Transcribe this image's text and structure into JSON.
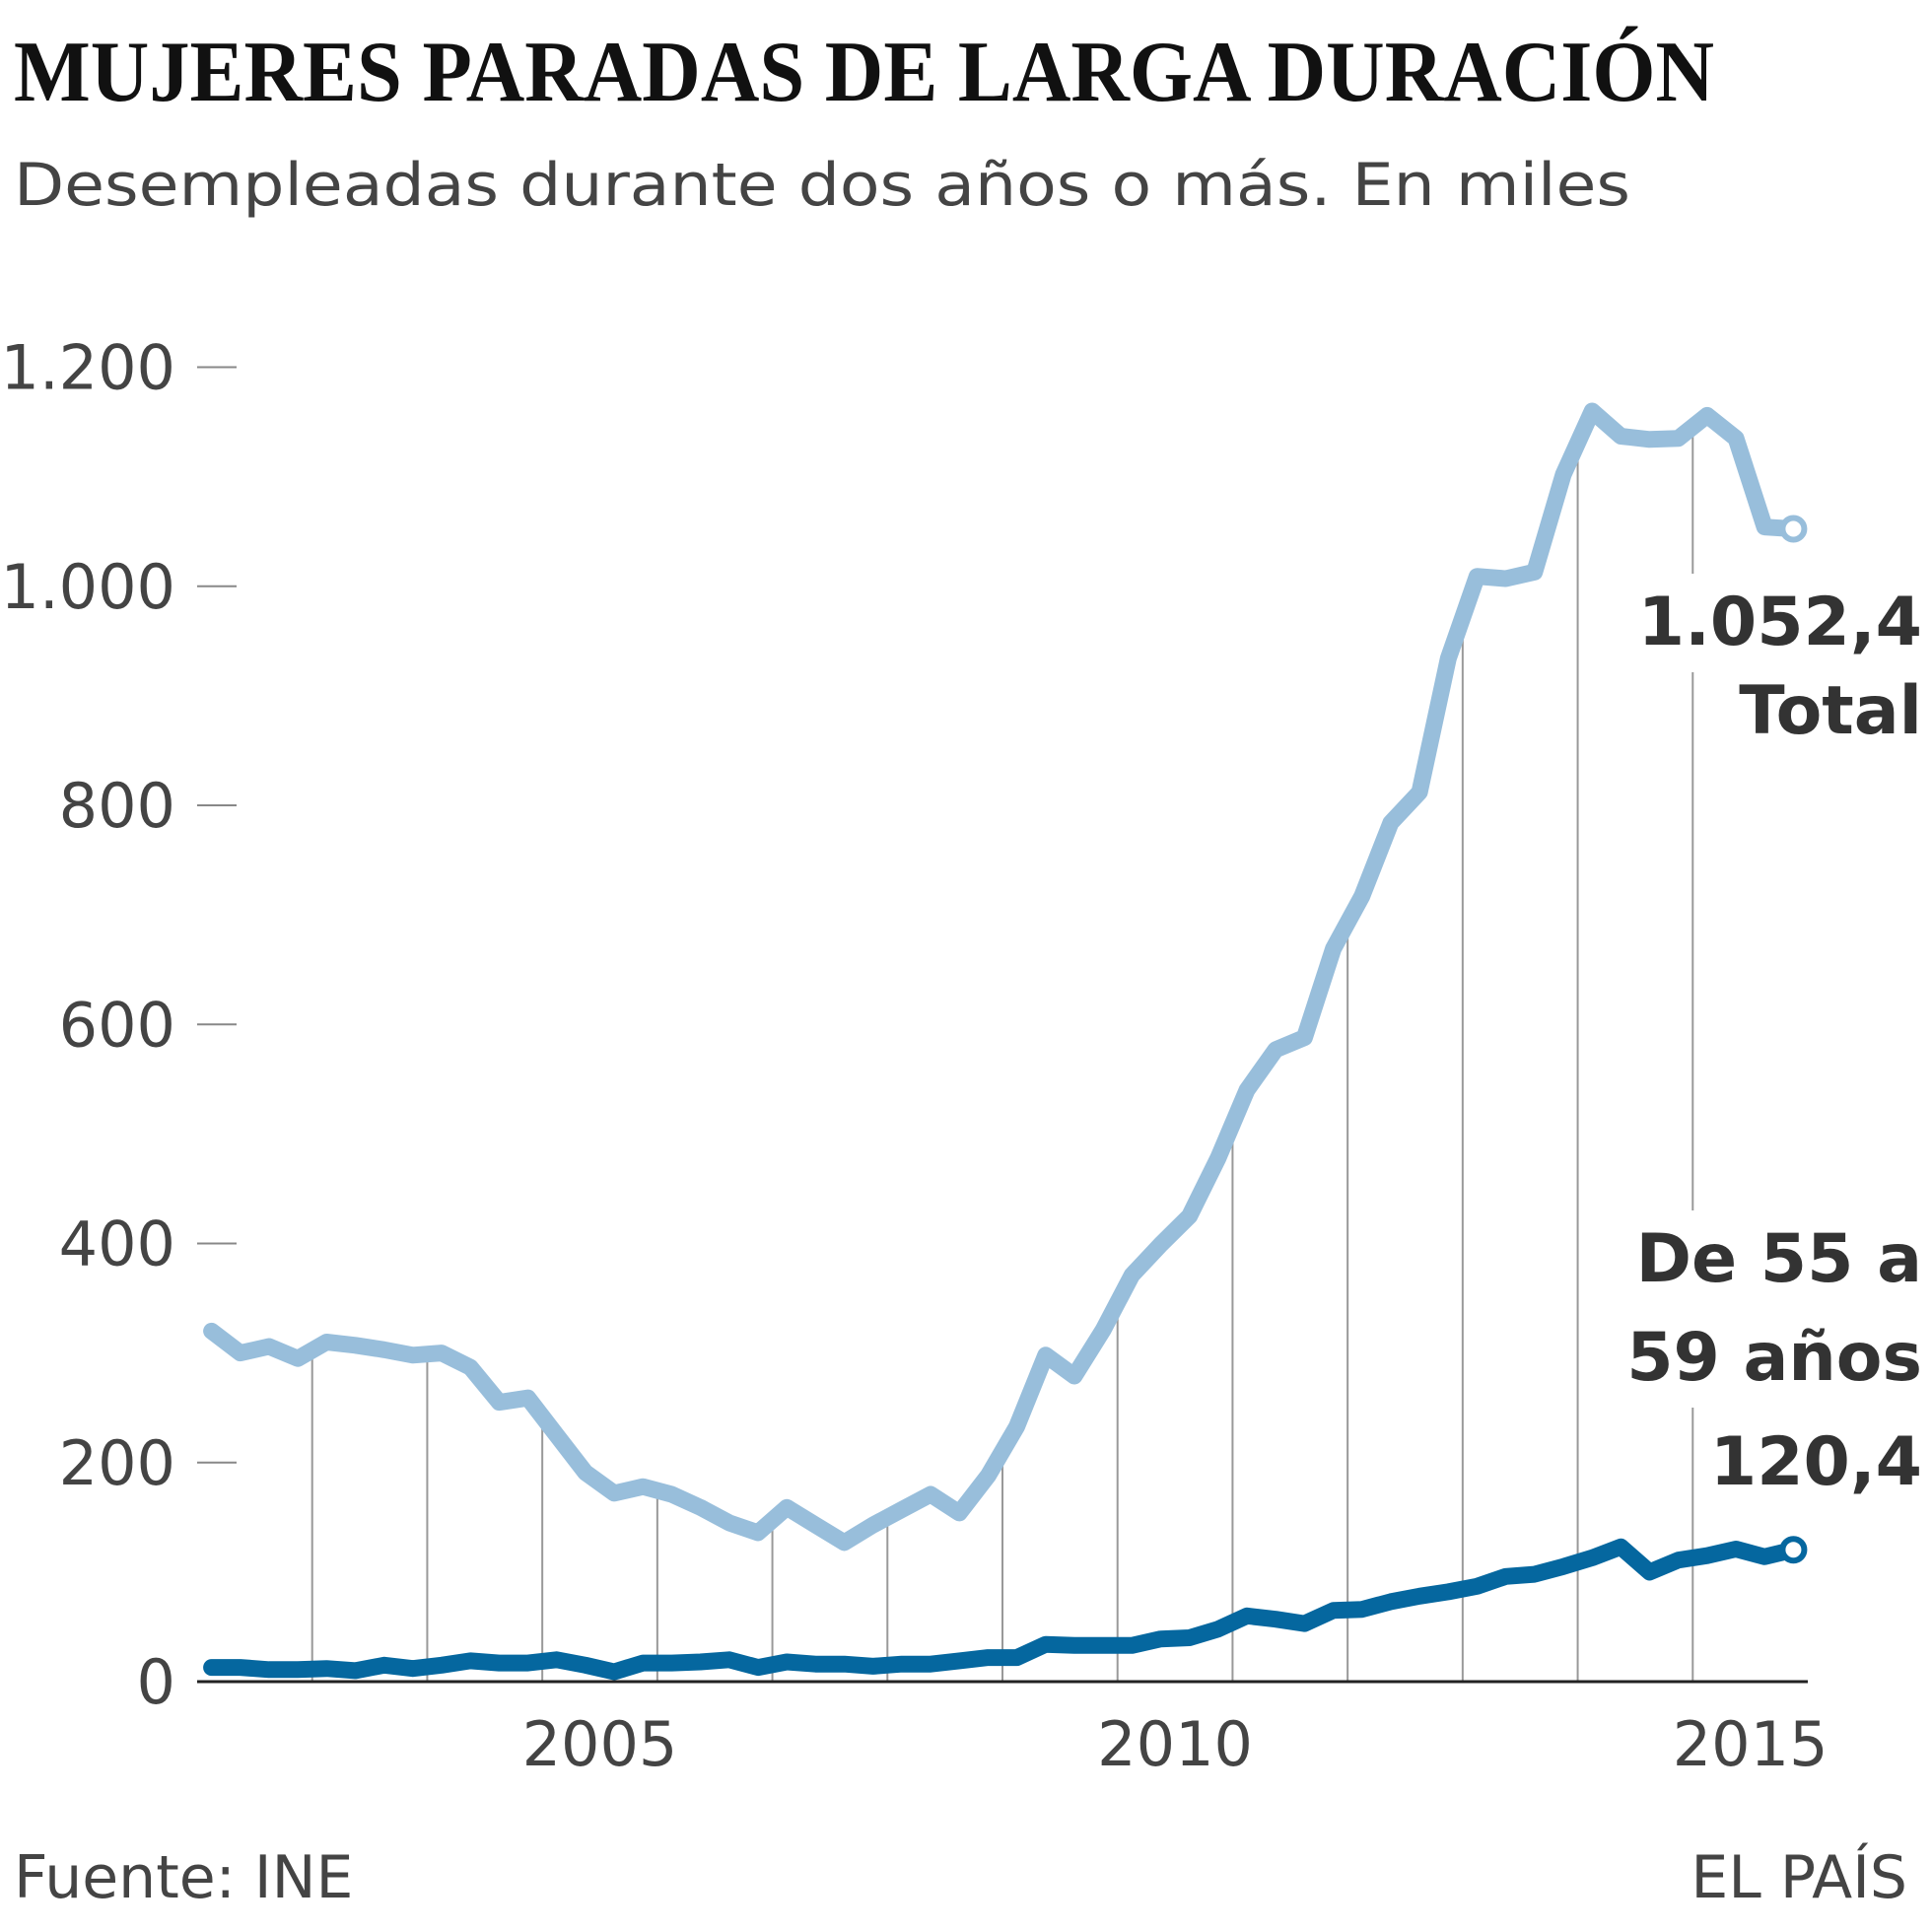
{
  "chart_data": {
    "type": "line",
    "title": "MUJERES PARADAS DE LARGA DURACIÓN",
    "subtitle": "Desempleadas durante dos años o más. En miles",
    "source": "Fuente: INE",
    "credit": "EL PAÍS",
    "x": [
      2002.125,
      2002.375,
      2002.625,
      2002.875,
      2003.125,
      2003.375,
      2003.625,
      2003.875,
      2004.125,
      2004.375,
      2004.625,
      2004.875,
      2005.125,
      2005.375,
      2005.625,
      2005.875,
      2006.125,
      2006.375,
      2006.625,
      2006.875,
      2007.125,
      2007.375,
      2007.625,
      2007.875,
      2008.125,
      2008.375,
      2008.625,
      2008.875,
      2009.125,
      2009.375,
      2009.625,
      2009.875,
      2010.125,
      2010.375,
      2010.625,
      2010.875,
      2011.125,
      2011.375,
      2011.625,
      2011.875,
      2012.125,
      2012.375,
      2012.625,
      2012.875,
      2013.125,
      2013.375,
      2013.625,
      2013.875,
      2014.125,
      2014.375,
      2014.625,
      2014.875,
      2015.125,
      2015.375,
      2015.625,
      2015.875
    ],
    "series": [
      {
        "name": "Total",
        "color": "#98bedb",
        "values": [
          320,
          300,
          306,
          295,
          310,
          307,
          303,
          298,
          300,
          287,
          255,
          259,
          225,
          191,
          172,
          178,
          171,
          159,
          145,
          136,
          159,
          143,
          127,
          143,
          157,
          171,
          154,
          188,
          233,
          298,
          279,
          321,
          371,
          399,
          425,
          478,
          540,
          577,
          588,
          669,
          717,
          784,
          812,
          934,
          1009,
          1007,
          1013,
          1102,
          1160,
          1137,
          1134,
          1135,
          1156,
          1135,
          1054,
          1052.4
        ],
        "value_labels": [
          null,
          null,
          null,
          null,
          null,
          null,
          null,
          null,
          null,
          null,
          null,
          null,
          null,
          null,
          null,
          null,
          null,
          null,
          null,
          null,
          null,
          null,
          null,
          null,
          null,
          null,
          null,
          null,
          null,
          null,
          null,
          null,
          null,
          null,
          null,
          null,
          null,
          null,
          null,
          null,
          null,
          null,
          null,
          null,
          null,
          null,
          null,
          null,
          null,
          null,
          null,
          null,
          null,
          null,
          null,
          "1.052,4"
        ]
      },
      {
        "name": "De 55 a 59 años",
        "color": "#05679f",
        "values": [
          13,
          13,
          11,
          11,
          12,
          10,
          15,
          12,
          15,
          19,
          17,
          17,
          20,
          15,
          9,
          17,
          17,
          18,
          20,
          13,
          18,
          16,
          16,
          14,
          16,
          16,
          19,
          22,
          22,
          34,
          33,
          33,
          33,
          39,
          40,
          48,
          60,
          57,
          53,
          65,
          66,
          73,
          78,
          82,
          87,
          96,
          98,
          105,
          113,
          123,
          100,
          111,
          115,
          121,
          114,
          120.4
        ],
        "value_labels": [
          null,
          null,
          null,
          null,
          null,
          null,
          null,
          null,
          null,
          null,
          null,
          null,
          null,
          null,
          null,
          null,
          null,
          null,
          null,
          null,
          null,
          null,
          null,
          null,
          null,
          null,
          null,
          null,
          null,
          null,
          null,
          null,
          null,
          null,
          null,
          null,
          null,
          null,
          null,
          null,
          null,
          null,
          null,
          null,
          null,
          null,
          null,
          null,
          null,
          null,
          null,
          null,
          null,
          null,
          null,
          "120,4"
        ]
      }
    ],
    "xlim": [
      2002,
      2016
    ],
    "xticks": [
      2005,
      2010,
      2015
    ],
    "xminorticks": [
      2003,
      2004,
      2005,
      2006,
      2007,
      2008,
      2009,
      2010,
      2011,
      2012,
      2013,
      2014,
      2015
    ],
    "ylim": [
      0,
      1200
    ],
    "yticks": [
      0,
      200,
      400,
      600,
      800,
      {
        "value": 1000,
        "label": "1.000"
      },
      {
        "value": 1200,
        "label": "1.200"
      }
    ]
  }
}
